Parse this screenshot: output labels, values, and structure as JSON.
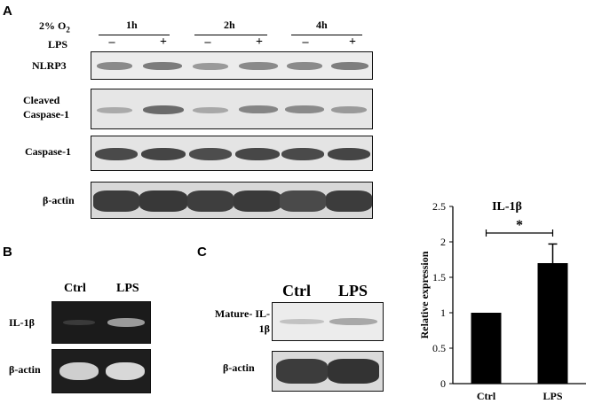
{
  "panels": {
    "a": "A",
    "b": "B",
    "c": "C"
  },
  "panel_a": {
    "o2_label": "2% O2",
    "lps_label": "LPS",
    "timepoints": [
      "1h",
      "2h",
      "4h"
    ],
    "lps_signs": [
      "–",
      "+",
      "–",
      "+",
      "–",
      "+"
    ],
    "blots": [
      {
        "label": "NLRP3"
      },
      {
        "label": "Cleaved Caspase-1"
      },
      {
        "label": "Caspase-1"
      },
      {
        "label": "β-actin"
      }
    ]
  },
  "panel_b": {
    "lanes": [
      "Ctrl",
      "LPS"
    ],
    "rows": [
      {
        "label": "IL-1β"
      },
      {
        "label": "β-actin"
      }
    ]
  },
  "panel_c": {
    "lanes": [
      "Ctrl",
      "LPS"
    ],
    "rows": [
      {
        "label": "Mature- IL-1β"
      },
      {
        "label": "β-actin"
      }
    ]
  },
  "chart_data": {
    "type": "bar",
    "title": "IL-1β",
    "categories": [
      "Ctrl",
      "LPS"
    ],
    "values": [
      1.0,
      1.7
    ],
    "errors": [
      0.0,
      0.27
    ],
    "ylabel": "Relative expression",
    "xlabel": "",
    "ylim": [
      0,
      2.5
    ],
    "yticks": [
      "0",
      "0.5",
      "1",
      "1.5",
      "2",
      "2.5"
    ],
    "significance": "*",
    "grid": false,
    "bar_color": "#000000"
  }
}
